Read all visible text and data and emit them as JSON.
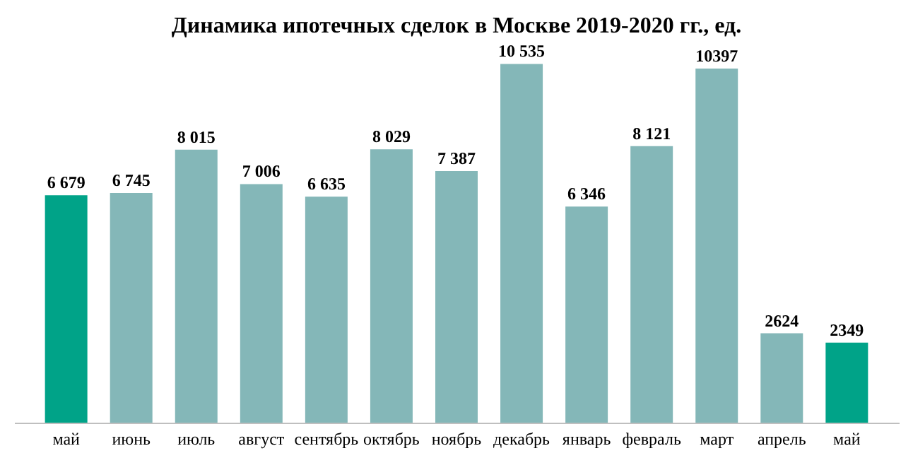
{
  "chart_data": {
    "type": "bar",
    "title": "Динамика ипотечных сделок в Москве 2019-2020 гг., ед.",
    "categories": [
      "май",
      "июнь",
      "июль",
      "август",
      "сентябрь",
      "октябрь",
      "ноябрь",
      "декабрь",
      "январь",
      "февраль",
      "март",
      "апрель",
      "май"
    ],
    "values": [
      6679,
      6745,
      8015,
      7006,
      6635,
      8029,
      7387,
      10535,
      6346,
      8121,
      10397,
      2624,
      2349
    ],
    "value_labels": [
      "6 679",
      "6 745",
      "8 015",
      "7 006",
      "6 635",
      "8 029",
      "7 387",
      "10 535",
      "6 346",
      "8 121",
      "10397",
      "2624",
      "2349"
    ],
    "colors": [
      "#00a388",
      "#84b7b8",
      "#84b7b8",
      "#84b7b8",
      "#84b7b8",
      "#84b7b8",
      "#84b7b8",
      "#84b7b8",
      "#84b7b8",
      "#84b7b8",
      "#84b7b8",
      "#84b7b8",
      "#00a388"
    ],
    "grid": false,
    "tick_labels": "x"
  }
}
